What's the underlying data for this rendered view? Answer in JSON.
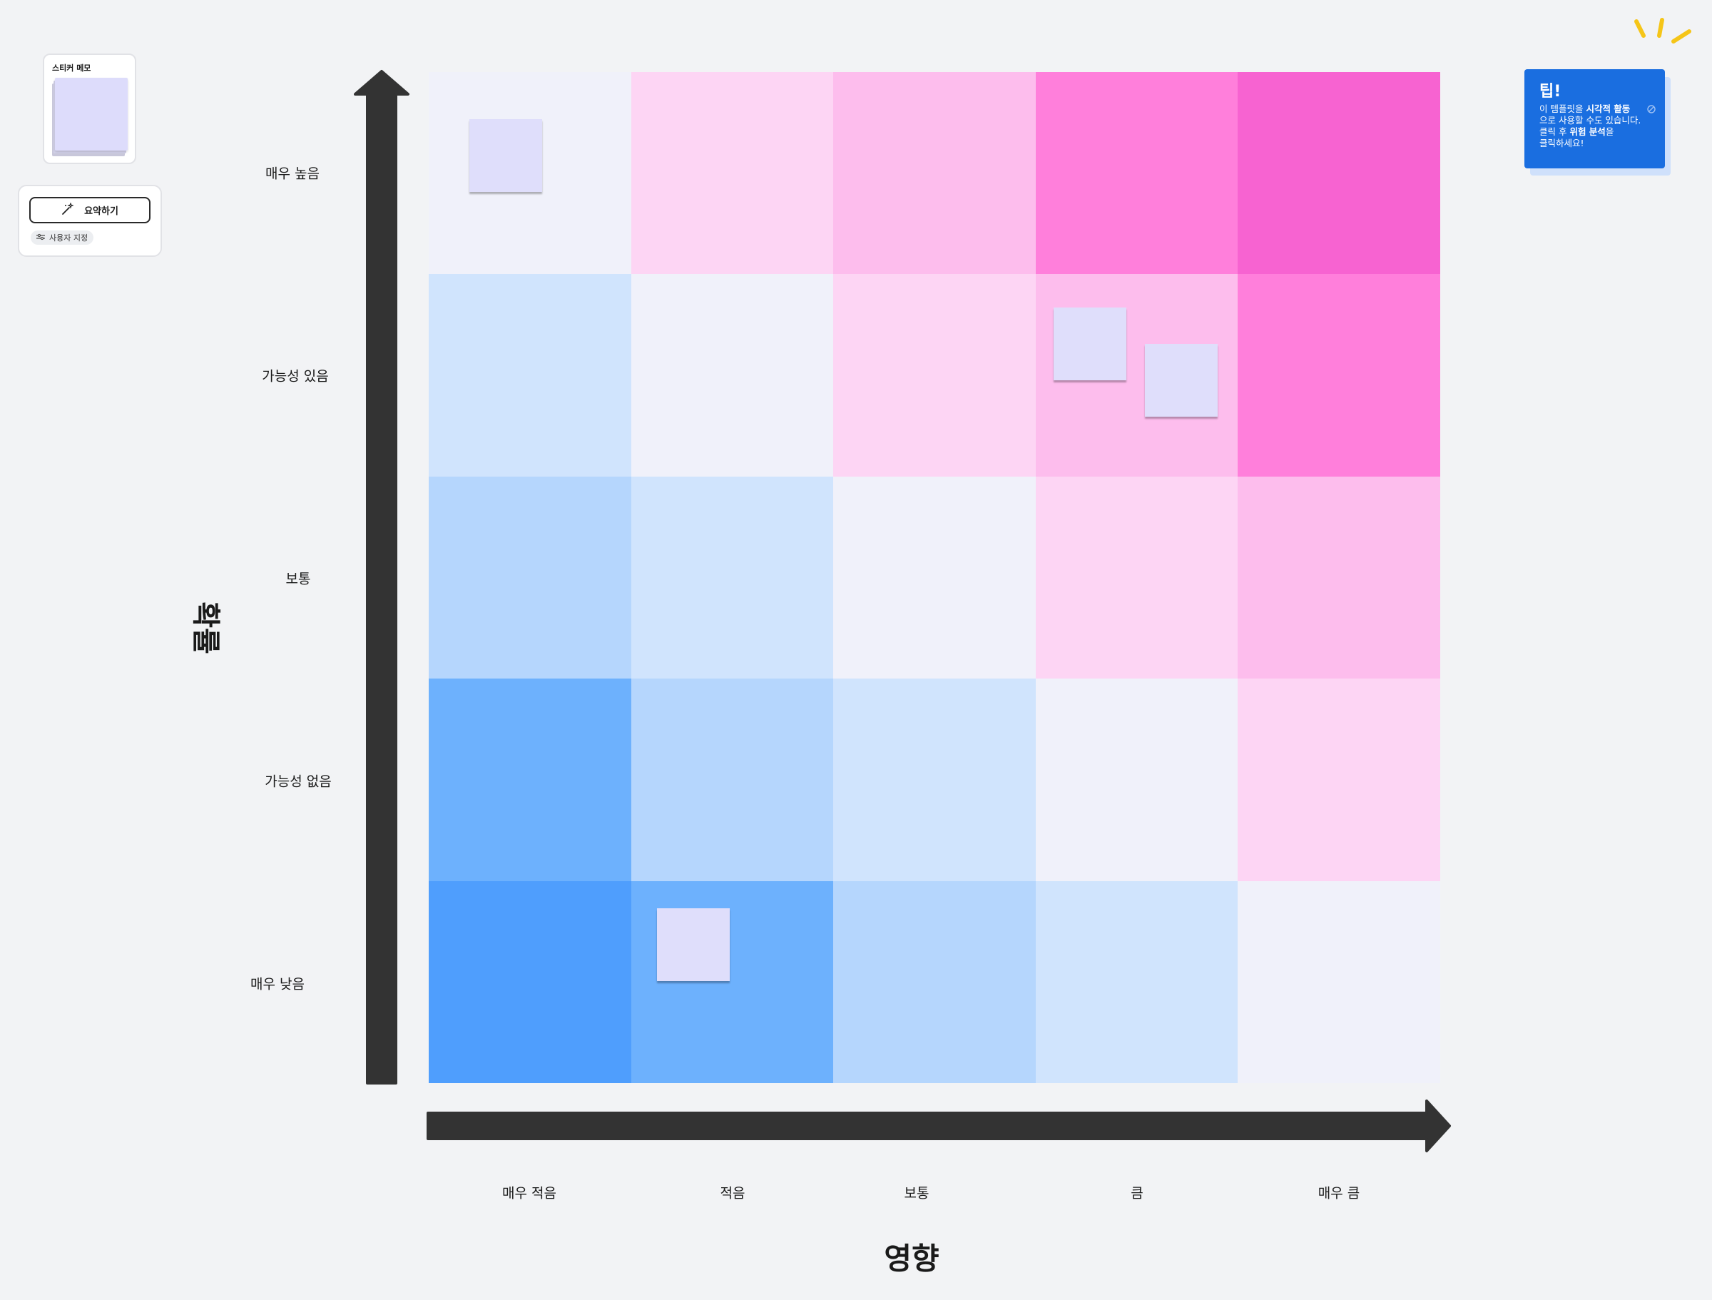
{
  "sticky_tool": {
    "title": "스티커 메모",
    "note_color": "#dddcfb"
  },
  "summarize": {
    "button_label": "요약하기",
    "customize_label": "사용자 지정"
  },
  "matrix": {
    "y_axis_title": "확률",
    "x_axis_title": "영향",
    "row_labels": [
      "매우 높음",
      "가능성 있음",
      "보통",
      "가능성 없음",
      "매우 낮음"
    ],
    "col_labels": [
      "매우 적음",
      "적음",
      "보통",
      "큼",
      "매우 큼"
    ],
    "cell_colors": [
      [
        "#f0f1fa",
        "#fdd5f4",
        "#fdbded",
        "#ff7fdb",
        "#f763d1"
      ],
      [
        "#d0e4fd",
        "#f0f1fa",
        "#fdd5f4",
        "#fdbded",
        "#ff7fdb"
      ],
      [
        "#b5d6fd",
        "#d0e4fd",
        "#f0f1fa",
        "#fdd5f4",
        "#fdbded"
      ],
      [
        "#6db1fd",
        "#b5d6fd",
        "#d0e4fd",
        "#f0f1fa",
        "#fdd5f4"
      ],
      [
        "#4f9efd",
        "#6db1fd",
        "#b5d6fd",
        "#d0e4fd",
        "#f0f1fa"
      ]
    ],
    "sticky_note_color": "#dfdefb"
  },
  "tip": {
    "title": "팁!",
    "line1_a": "이 템플릿을 ",
    "line1_b": "시각적 활동",
    "line2": "으로 사용할 수도 있습니다.",
    "line3_a": "클릭 후 ",
    "line3_b": "위험 분석",
    "line3_c": "을",
    "line4": "클릭하세요!",
    "card_color": "#1a6ee0"
  },
  "colors": {
    "arrow": "#333333",
    "background": "#f2f3f5",
    "sparkle": "#f5c518"
  }
}
